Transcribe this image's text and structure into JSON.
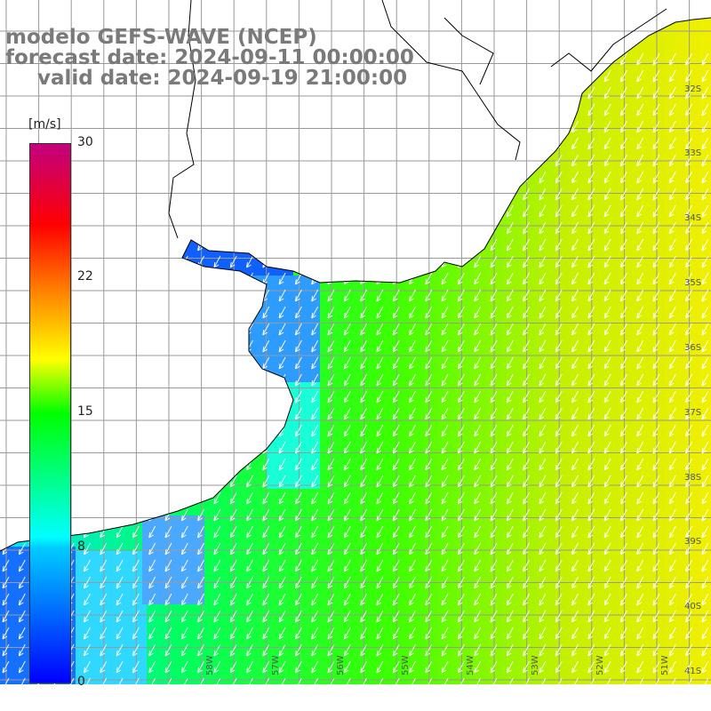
{
  "header": {
    "model_line": "modelo GEFS-WAVE (NCEP)",
    "forecast_line": "forecast date: 2024-09-11 00:00:00",
    "valid_line": "valid date: 2024-09-19 21:00:00"
  },
  "colorbar": {
    "unit": "[m/s]",
    "ticks": [
      "30",
      "22",
      "15",
      "8",
      "0"
    ],
    "colors": [
      "#0000ff",
      "#00ccff",
      "#00ffff",
      "#00ff00",
      "#ffff00",
      "#ff8800",
      "#ff0000",
      "#c2007f"
    ]
  },
  "latitude_labels": [
    "32S",
    "33S",
    "34S",
    "35S",
    "36S",
    "37S",
    "38S",
    "39S",
    "40S",
    "41S"
  ],
  "longitude_labels": [
    "58W",
    "57W",
    "56W",
    "55W",
    "54W",
    "53W",
    "52W",
    "51W"
  ],
  "map": {
    "land_color": "#ffffff",
    "grid_color": "#999999",
    "coastline_color": "#000000",
    "arrow_color": "#ffffff"
  }
}
